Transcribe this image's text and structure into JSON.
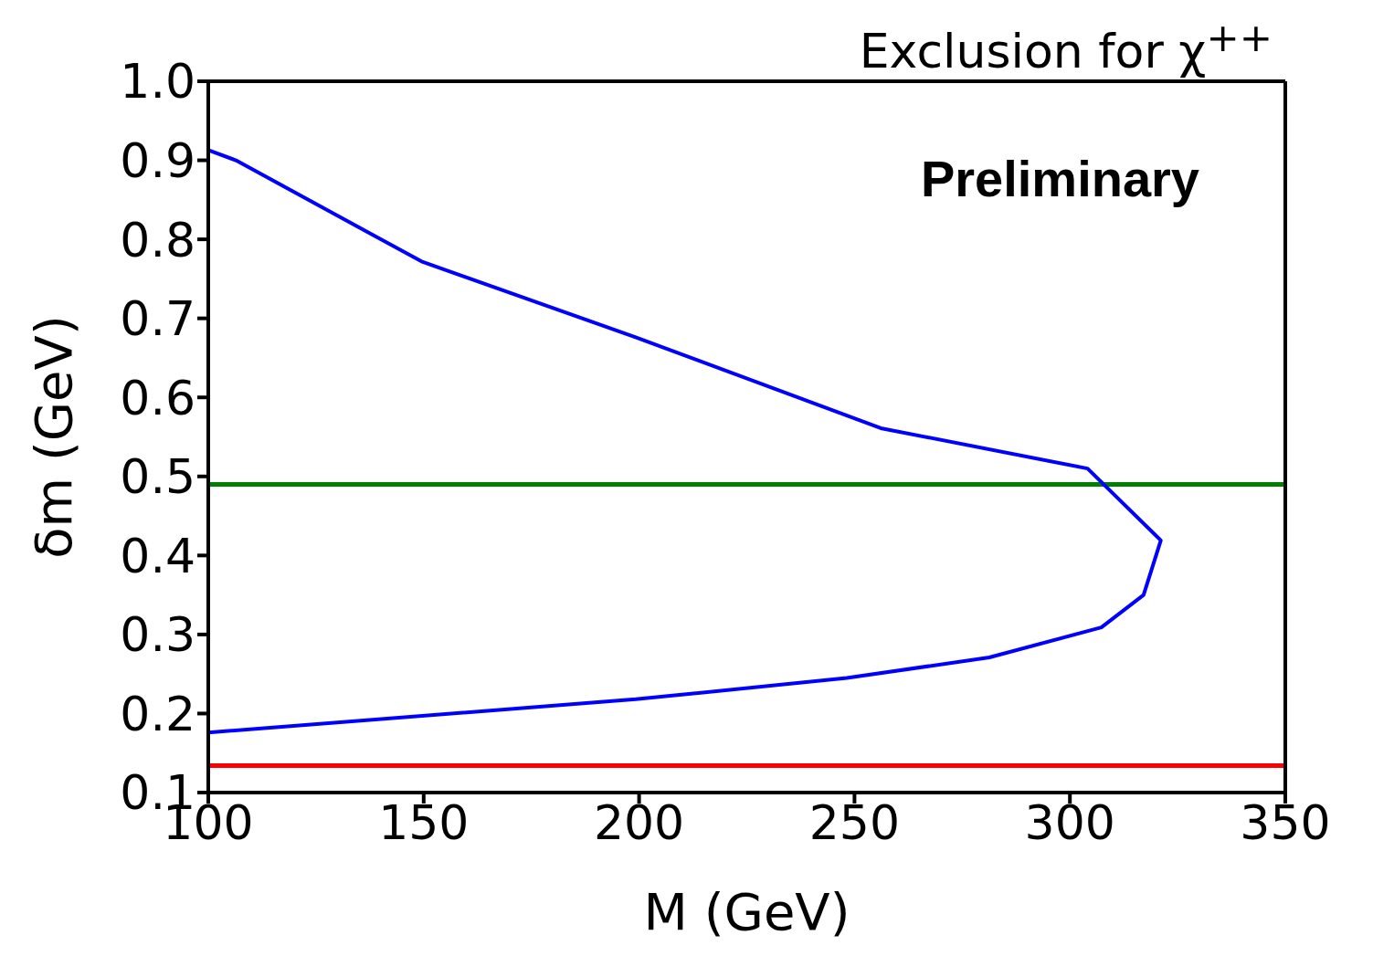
{
  "chart_data": {
    "type": "line",
    "title": "Exclusion for χ$^{++}$",
    "xlabel": "M (GeV)",
    "ylabel": "δm (GeV)",
    "annotations": [
      "Preliminary"
    ],
    "x": [
      100,
      106.4,
      149.5,
      199.2,
      256.1,
      304.1,
      321.1,
      317.1,
      307.3,
      281.3,
      248.2,
      199.2,
      100
    ],
    "series": [
      {
        "color": "#0000ff",
        "values": [
          0.913,
          0.9,
          0.772,
          0.676,
          0.561,
          0.51,
          0.419,
          0.35,
          0.309,
          0.271,
          0.245,
          0.218,
          0.176
        ]
      }
    ],
    "ref_lines": [
      {
        "axis": "y",
        "value": 0.49,
        "color": "#007f00"
      },
      {
        "axis": "y",
        "value": 0.134,
        "color": "#ff0000"
      }
    ],
    "xlim": [
      100,
      350
    ],
    "xticks": [
      100,
      150,
      200,
      250,
      300,
      350
    ],
    "ylim": [
      0.1,
      1.0
    ],
    "yticks": [
      {
        "value": 0.1,
        "label": "0.1"
      },
      {
        "value": 0.2,
        "label": "0.2"
      },
      {
        "value": 0.3,
        "label": "0.3"
      },
      {
        "value": 0.4,
        "label": "0.4"
      },
      {
        "value": 0.5,
        "label": "0.5"
      },
      {
        "value": 0.6,
        "label": "0.6"
      },
      {
        "value": 0.7,
        "label": "0.7"
      },
      {
        "value": 0.8,
        "label": "0.8"
      },
      {
        "value": 0.9,
        "label": "0.9"
      },
      {
        "value": 1.0,
        "label": "1.0"
      }
    ],
    "grid": false,
    "marker": "none",
    "line_style": "solid"
  }
}
